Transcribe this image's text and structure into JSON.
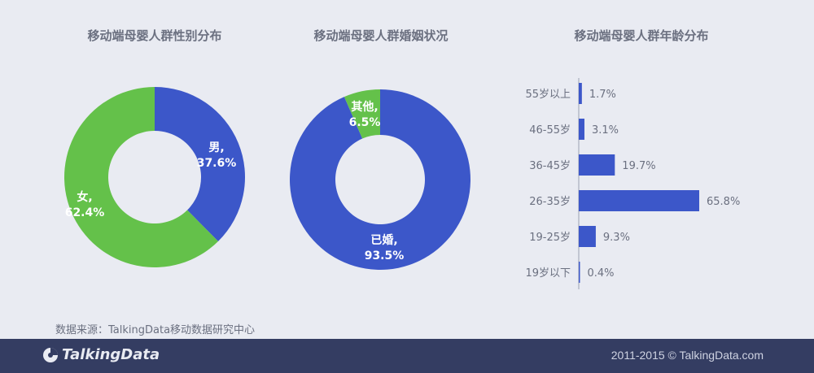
{
  "colors": {
    "blue": "#3c57c9",
    "green": "#64c14a",
    "label_text": "#6b7080"
  },
  "chart_data": [
    {
      "type": "pie",
      "title": "移动端母婴人群性别分布",
      "slices": [
        {
          "name": "男",
          "label": "男,",
          "value_label": "37.6%",
          "value": 37.6,
          "color": "#3c57c9"
        },
        {
          "name": "女",
          "label": "女,",
          "value_label": "62.4%",
          "value": 62.4,
          "color": "#64c14a"
        }
      ]
    },
    {
      "type": "pie",
      "title": "移动端母婴人群婚姻状况",
      "slices": [
        {
          "name": "已婚",
          "label": "已婚,",
          "value_label": "93.5%",
          "value": 93.5,
          "color": "#3c57c9"
        },
        {
          "name": "其他",
          "label": "其他,",
          "value_label": "6.5%",
          "value": 6.5,
          "color": "#64c14a"
        }
      ]
    },
    {
      "type": "bar",
      "orientation": "horizontal",
      "title": "移动端母婴人群年龄分布",
      "categories": [
        "55岁以上",
        "46-55岁",
        "36-45岁",
        "26-35岁",
        "19-25岁",
        "19岁以下"
      ],
      "values": [
        1.7,
        3.1,
        19.7,
        65.8,
        9.3,
        0.4
      ],
      "value_labels": [
        "1.7%",
        "3.1%",
        "19.7%",
        "65.8%",
        "9.3%",
        "0.4%"
      ],
      "color": "#3c57c9"
    }
  ],
  "source": "数据来源：TalkingData移动数据研究中心",
  "footer": {
    "logo_text": "TalkingData",
    "copyright": "2011-2015 © TalkingData.com"
  }
}
